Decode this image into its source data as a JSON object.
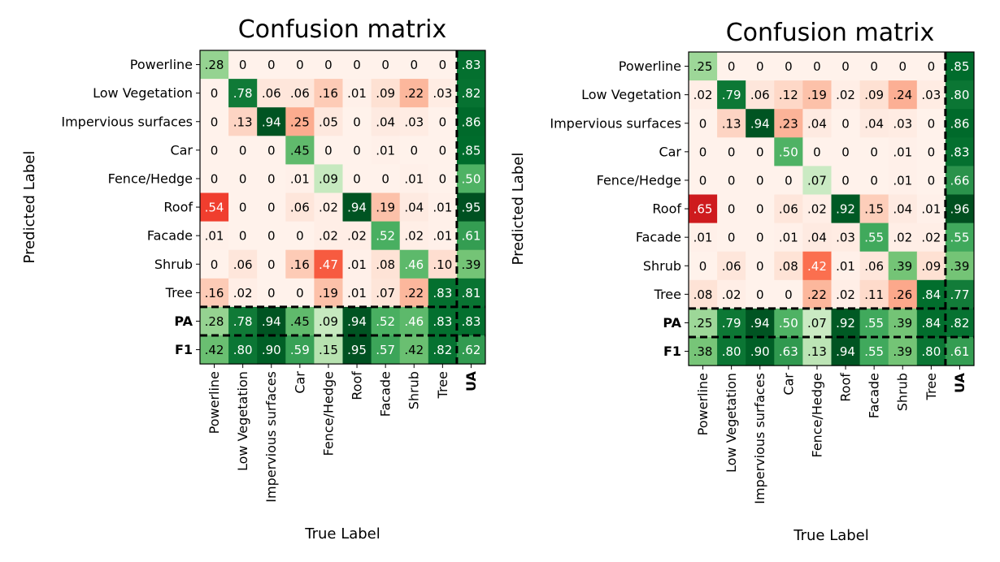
{
  "chart_data": [
    {
      "type": "heatmap",
      "title": "Confusion matrix",
      "xlabel": "True Label",
      "ylabel": "Predicted Label",
      "columns": [
        "Powerline",
        "Low Vegetation",
        "Impervious surfaces",
        "Car",
        "Fence/Hedge",
        "Roof",
        "Facade",
        "Shrub",
        "Tree",
        "UA"
      ],
      "rows": [
        "Powerline",
        "Low Vegetation",
        "Impervious surfaces",
        "Car",
        "Fence/Hedge",
        "Roof",
        "Facade",
        "Shrub",
        "Tree",
        "PA",
        "F1"
      ],
      "bold_labels": [
        "UA",
        "PA",
        "F1"
      ],
      "colormap": {
        "diagonal_summary": "Greens",
        "off_diagonal": "Reds"
      },
      "cells": [
        [
          ".28",
          "0",
          "0",
          "0",
          "0",
          "0",
          "0",
          "0",
          "0",
          ".83"
        ],
        [
          "0",
          ".78",
          ".06",
          ".06",
          ".16",
          ".01",
          ".09",
          ".22",
          ".03",
          ".82"
        ],
        [
          "0",
          ".13",
          ".94",
          ".25",
          ".05",
          "0",
          ".04",
          ".03",
          "0",
          ".86"
        ],
        [
          "0",
          "0",
          "0",
          ".45",
          "0",
          "0",
          ".01",
          "0",
          "0",
          ".85"
        ],
        [
          "0",
          "0",
          "0",
          ".01",
          ".09",
          "0",
          "0",
          ".01",
          "0",
          ".50"
        ],
        [
          ".54",
          "0",
          "0",
          ".06",
          ".02",
          ".94",
          ".19",
          ".04",
          ".01",
          ".95"
        ],
        [
          ".01",
          "0",
          "0",
          "0",
          ".02",
          ".02",
          ".52",
          ".02",
          ".01",
          ".61"
        ],
        [
          "0",
          ".06",
          "0",
          ".16",
          ".47",
          ".01",
          ".08",
          ".46",
          ".10",
          ".39"
        ],
        [
          ".16",
          ".02",
          "0",
          "0",
          ".19",
          ".01",
          ".07",
          ".22",
          ".83",
          ".81"
        ],
        [
          ".28",
          ".78",
          ".94",
          ".45",
          ".09",
          ".94",
          ".52",
          ".46",
          ".83",
          ".83"
        ],
        [
          ".42",
          ".80",
          ".90",
          ".59",
          ".15",
          ".95",
          ".57",
          ".42",
          ".82",
          ".62"
        ]
      ]
    },
    {
      "type": "heatmap",
      "title": "Confusion matrix",
      "xlabel": "True Label",
      "ylabel": "Predicted Label",
      "columns": [
        "Powerline",
        "Low Vegetation",
        "Impervious surfaces",
        "Car",
        "Fence/Hedge",
        "Roof",
        "Facade",
        "Shrub",
        "Tree",
        "UA"
      ],
      "rows": [
        "Powerline",
        "Low Vegetation",
        "Impervious surfaces",
        "Car",
        "Fence/Hedge",
        "Roof",
        "Facade",
        "Shrub",
        "Tree",
        "PA",
        "F1"
      ],
      "bold_labels": [
        "UA",
        "PA",
        "F1"
      ],
      "colormap": {
        "diagonal_summary": "Greens",
        "off_diagonal": "Reds"
      },
      "cells": [
        [
          ".25",
          "0",
          "0",
          "0",
          "0",
          "0",
          "0",
          "0",
          "0",
          ".85"
        ],
        [
          ".02",
          ".79",
          ".06",
          ".12",
          ".19",
          ".02",
          ".09",
          ".24",
          ".03",
          ".80"
        ],
        [
          "0",
          ".13",
          ".94",
          ".23",
          ".04",
          "0",
          ".04",
          ".03",
          "0",
          ".86"
        ],
        [
          "0",
          "0",
          "0",
          ".50",
          "0",
          "0",
          "0",
          ".01",
          "0",
          ".83"
        ],
        [
          "0",
          "0",
          "0",
          "0",
          ".07",
          "0",
          "0",
          ".01",
          "0",
          ".66"
        ],
        [
          ".65",
          "0",
          "0",
          ".06",
          ".02",
          ".92",
          ".15",
          ".04",
          ".01",
          ".96"
        ],
        [
          ".01",
          "0",
          "0",
          ".01",
          ".04",
          ".03",
          ".55",
          ".02",
          ".02",
          ".55"
        ],
        [
          "0",
          ".06",
          "0",
          ".08",
          ".42",
          ".01",
          ".06",
          ".39",
          ".09",
          ".39"
        ],
        [
          ".08",
          ".02",
          "0",
          "0",
          ".22",
          ".02",
          ".11",
          ".26",
          ".84",
          ".77"
        ],
        [
          ".25",
          ".79",
          ".94",
          ".50",
          ".07",
          ".92",
          ".55",
          ".39",
          ".84",
          ".82"
        ],
        [
          ".38",
          ".80",
          ".90",
          ".63",
          ".13",
          ".94",
          ".55",
          ".39",
          ".80",
          ".61"
        ]
      ]
    }
  ]
}
